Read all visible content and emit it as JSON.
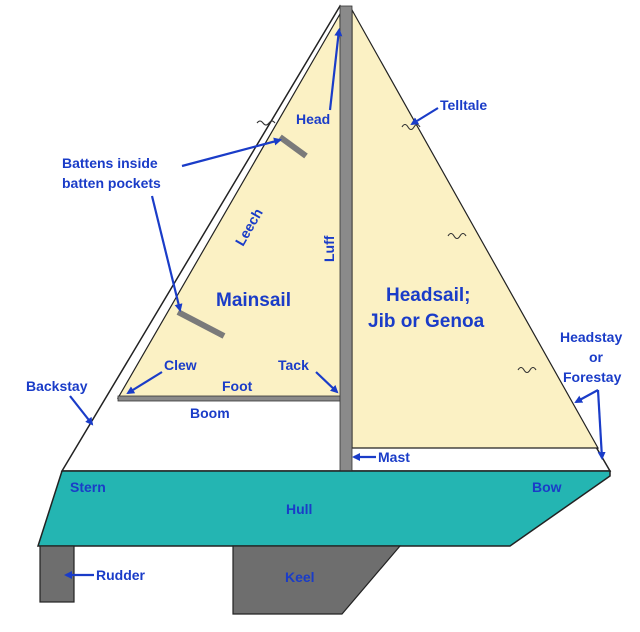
{
  "labels": {
    "head": "Head",
    "telltale": "Telltale",
    "battens_line1": "Battens inside",
    "battens_line2": "batten pockets",
    "leech": "Leech",
    "luff": "Luff",
    "mainsail": "Mainsail",
    "headsail_line1": "Headsail;",
    "headsail_line2": "Jib or Genoa",
    "headstay_line1": "Headstay",
    "headstay_line2": "or",
    "headstay_line3": "Forestay",
    "clew": "Clew",
    "tack": "Tack",
    "foot": "Foot",
    "boom": "Boom",
    "backstay": "Backstay",
    "mast": "Mast",
    "stern": "Stern",
    "bow": "Bow",
    "hull": "Hull",
    "rudder": "Rudder",
    "keel": "Keel"
  },
  "colors": {
    "sail": "#fbf1c4",
    "hull": "#24b5b2",
    "keel": "#6e6e6e",
    "mast": "#8a8a8a",
    "label": "#1a3cc8"
  }
}
